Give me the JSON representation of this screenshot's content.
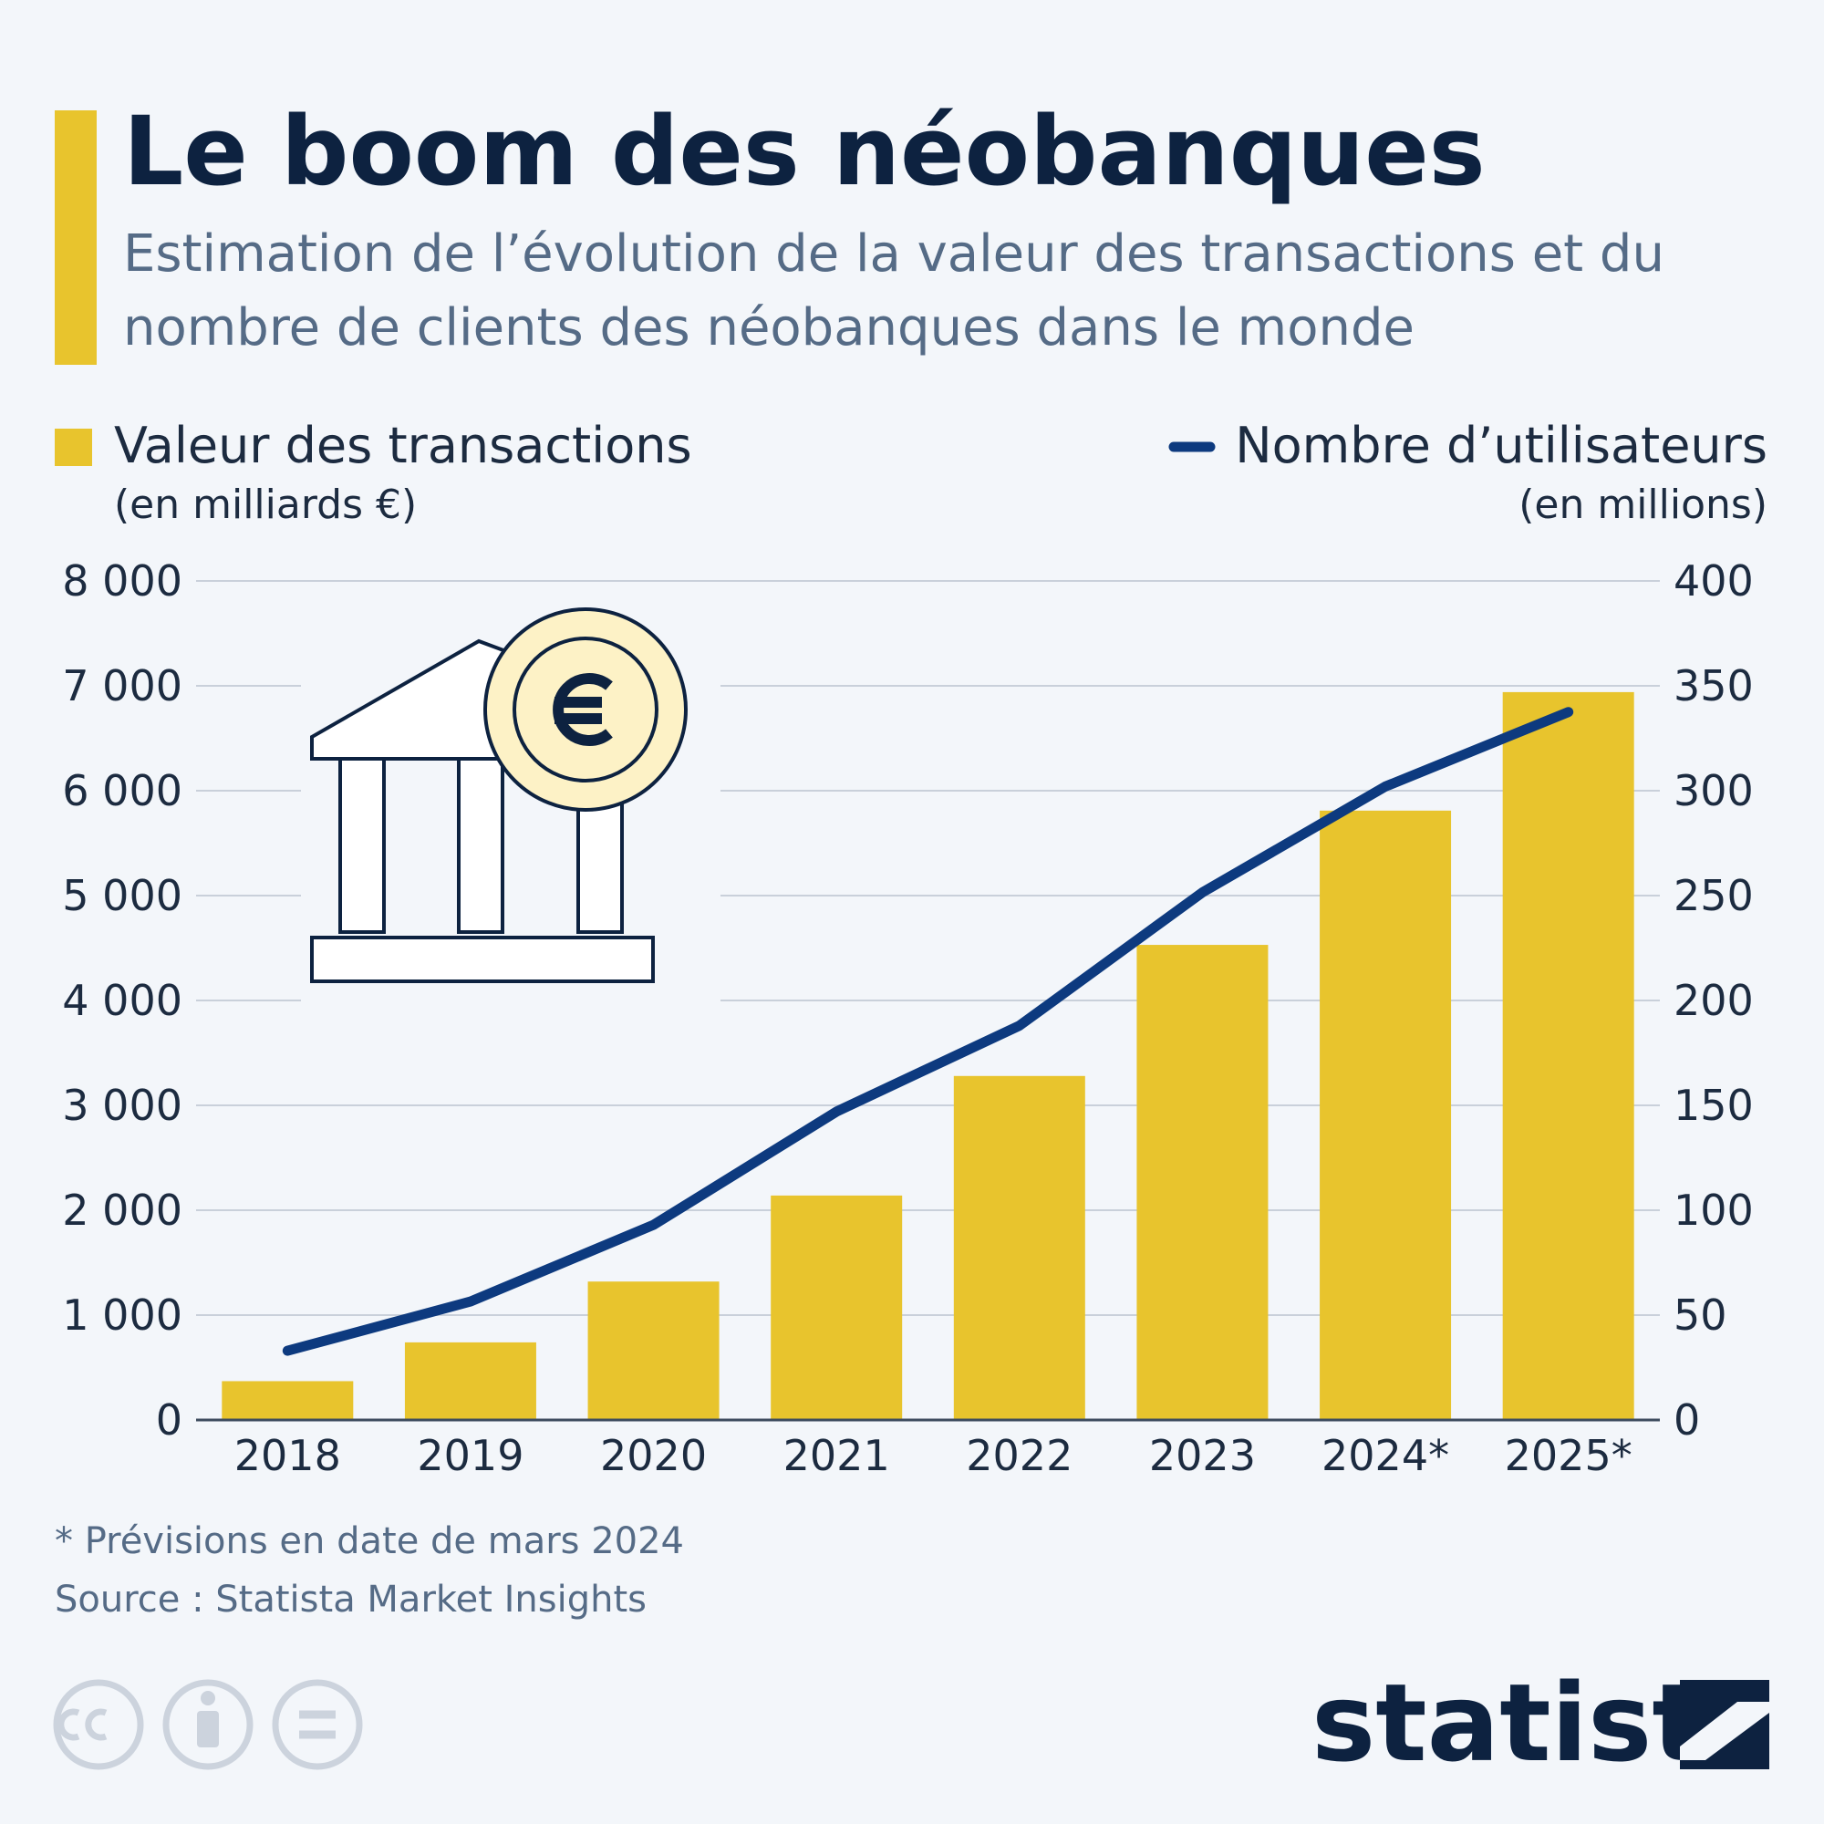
{
  "chart_data": {
    "type": "bar",
    "title": "Le boom des néobanques",
    "subtitle": "Estimation de l’évolution de la valeur des transactions et du nombre de clients des néobanques dans le monde",
    "categories": [
      "2018",
      "2019",
      "2020",
      "2021",
      "2022",
      "2023",
      "2024*",
      "2025*"
    ],
    "series": [
      {
        "name": "Valeur des transactions",
        "unit": "(en milliards €)",
        "type": "bar",
        "color": "#e8c42d",
        "values": [
          370,
          740,
          1320,
          2140,
          3280,
          4530,
          5810,
          6940
        ]
      },
      {
        "name": "Nombre d’utilisateurs",
        "unit": "(en millions)",
        "type": "line",
        "color": "#0d3a7f",
        "axis": "y2",
        "values": [
          33,
          56.5,
          93,
          147,
          188,
          251.5,
          302,
          337.5
        ]
      }
    ],
    "ylim": [
      0,
      8000
    ],
    "yticks": [
      0,
      {
        "value": 1000,
        "label": "1 000"
      },
      {
        "value": 2000,
        "label": "2 000"
      },
      {
        "value": 3000,
        "label": "3 000"
      },
      {
        "value": 4000,
        "label": "4 000"
      },
      {
        "value": 5000,
        "label": "5 000"
      },
      {
        "value": 6000,
        "label": "6 000"
      },
      {
        "value": 7000,
        "label": "7 000"
      },
      {
        "value": 8000,
        "label": "8 000"
      }
    ],
    "y2lim": [
      0,
      400
    ],
    "y2ticks": [
      0,
      50,
      100,
      150,
      200,
      250,
      300,
      350,
      400
    ],
    "grid": true,
    "footnote": "* Prévisions en date de mars 2024",
    "source": "Source : Statista Market Insights",
    "brand": "statista"
  }
}
